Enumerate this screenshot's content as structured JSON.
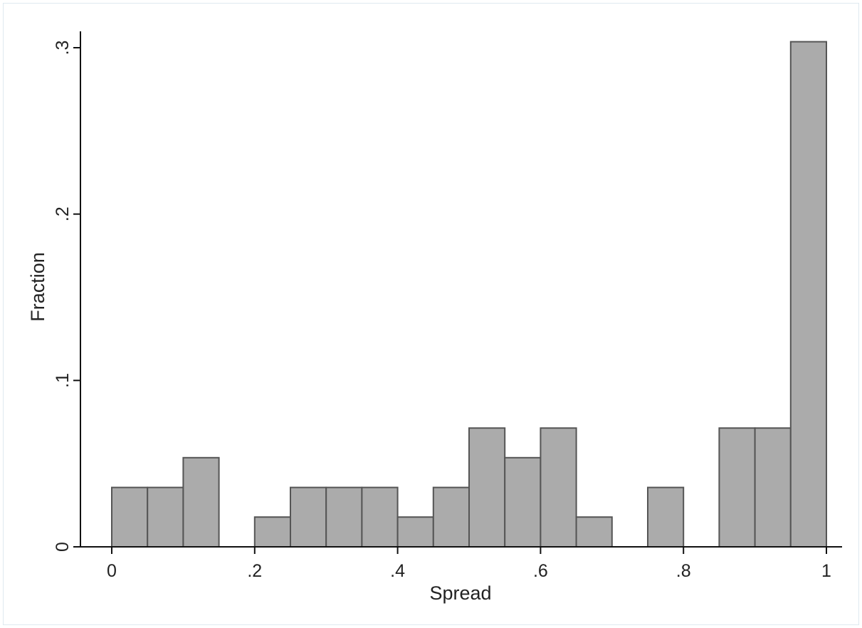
{
  "chart_data": {
    "type": "bar",
    "title": "",
    "xlabel": "Spread",
    "ylabel": "Fraction",
    "xlim": [
      0,
      1
    ],
    "ylim": [
      0,
      0.3
    ],
    "grid": false,
    "bin_width": 0.05,
    "x_ticks": [
      {
        "value": 0,
        "label": "0"
      },
      {
        "value": 0.2,
        "label": ".2"
      },
      {
        "value": 0.4,
        "label": ".4"
      },
      {
        "value": 0.6,
        "label": ".6"
      },
      {
        "value": 0.8,
        "label": ".8"
      },
      {
        "value": 1,
        "label": "1"
      }
    ],
    "y_ticks": [
      {
        "value": 0,
        "label": "0"
      },
      {
        "value": 0.1,
        "label": ".1"
      },
      {
        "value": 0.2,
        "label": ".2"
      },
      {
        "value": 0.3,
        "label": ".3"
      }
    ],
    "bins": [
      {
        "start": 0.0,
        "end": 0.05,
        "value": 0.0357
      },
      {
        "start": 0.05,
        "end": 0.1,
        "value": 0.0357
      },
      {
        "start": 0.1,
        "end": 0.15,
        "value": 0.0536
      },
      {
        "start": 0.15,
        "end": 0.2,
        "value": 0
      },
      {
        "start": 0.2,
        "end": 0.25,
        "value": 0.0179
      },
      {
        "start": 0.25,
        "end": 0.3,
        "value": 0.0357
      },
      {
        "start": 0.3,
        "end": 0.35,
        "value": 0.0357
      },
      {
        "start": 0.35,
        "end": 0.4,
        "value": 0.0357
      },
      {
        "start": 0.4,
        "end": 0.45,
        "value": 0.0179
      },
      {
        "start": 0.45,
        "end": 0.5,
        "value": 0.0357
      },
      {
        "start": 0.5,
        "end": 0.55,
        "value": 0.0714
      },
      {
        "start": 0.55,
        "end": 0.6,
        "value": 0.0536
      },
      {
        "start": 0.6,
        "end": 0.65,
        "value": 0.0714
      },
      {
        "start": 0.65,
        "end": 0.7,
        "value": 0.0179
      },
      {
        "start": 0.7,
        "end": 0.75,
        "value": 0
      },
      {
        "start": 0.75,
        "end": 0.8,
        "value": 0.0357
      },
      {
        "start": 0.8,
        "end": 0.85,
        "value": 0
      },
      {
        "start": 0.85,
        "end": 0.9,
        "value": 0.0714
      },
      {
        "start": 0.9,
        "end": 0.95,
        "value": 0.0714
      },
      {
        "start": 0.95,
        "end": 1.0,
        "value": 0.3036
      }
    ],
    "colors": {
      "bar_fill": "#ababab",
      "bar_edge": "#555555",
      "axis": "#111111",
      "frame": "#dfe9ef"
    }
  }
}
